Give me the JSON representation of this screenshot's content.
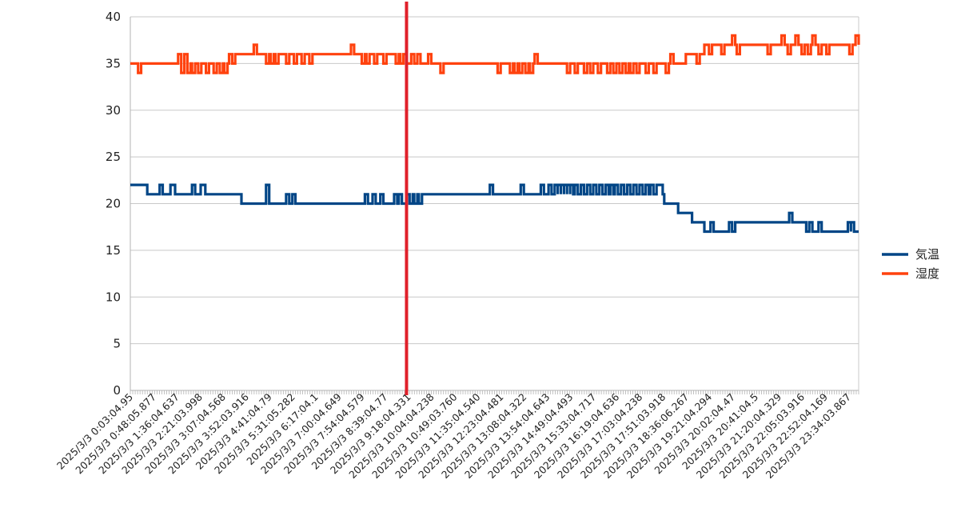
{
  "chart_data": {
    "type": "line",
    "title": "",
    "xlabel": "",
    "ylabel": "",
    "ylim": [
      0,
      40
    ],
    "yticks": [
      "0",
      "5",
      "10",
      "15",
      "20",
      "25",
      "30",
      "35",
      "40"
    ],
    "grid": "horizontal",
    "legend_position": "right",
    "x_range_hours": [
      0.0,
      23.6
    ],
    "x_tick_labels": [
      "2025/3/3 0:03:04.95",
      "2025/3/3 0:48:05.877",
      "2025/3/3 1:36:04.637",
      "2025/3/3 2:21:03.998",
      "2025/3/3 3:07:04.568",
      "2025/3/3 3:52:03.916",
      "2025/3/3 4:41:04.79",
      "2025/3/3 5:31:05.282",
      "2025/3/3 6:17:04.1",
      "2025/3/3 7:00:04.649",
      "2025/3/3 7:54:04.579",
      "2025/3/3 8:39:04.77",
      "2025/3/3 9:18:04.331",
      "2025/3/3 10:04:04.238",
      "2025/3/3 10:49:03.760",
      "2025/3/3 11:35:04.540",
      "2025/3/3 12:23:04.481",
      "2025/3/3 13:08:04.322",
      "2025/3/3 13:54:04.643",
      "2025/3/3 14:49:04.493",
      "2025/3/3 15:33:04.717",
      "2025/3/3 16:19:04.636",
      "2025/3/3 17:03:04.238",
      "2025/3/3 17:51:03.918",
      "2025/3/3 18:36:06.267",
      "2025/3/3 19:21:04.294",
      "2025/3/3 20:02:04.47",
      "2025/3/3 20:41:04.5",
      "2025/3/3 21:20:04.329",
      "2025/3/3 22:05:03.916",
      "2025/3/3 22:52:04.169",
      "2025/3/3 23:34:03.867"
    ],
    "marker_line": {
      "x_hours": 8.95,
      "color": "#e0202a"
    },
    "series": [
      {
        "name": "気温",
        "color": "#004586",
        "base_steps": [
          [
            0.0,
            22
          ],
          [
            0.55,
            21
          ],
          [
            3.6,
            20
          ],
          [
            8.95,
            21
          ],
          [
            17.3,
            20
          ],
          [
            17.75,
            19
          ],
          [
            18.2,
            18
          ],
          [
            18.6,
            17
          ],
          [
            19.6,
            18
          ],
          [
            22.1,
            17
          ]
        ],
        "spikes": [
          {
            "x": 0.95,
            "y": 22
          },
          {
            "x": 1.3,
            "y": 22
          },
          {
            "x": 1.35,
            "y": 22
          },
          {
            "x": 2.0,
            "y": 22
          },
          {
            "x": 2.28,
            "y": 22
          },
          {
            "x": 2.33,
            "y": 22
          },
          {
            "x": 4.4,
            "y": 22
          },
          {
            "x": 5.05,
            "y": 21
          },
          {
            "x": 5.25,
            "y": 21
          },
          {
            "x": 7.6,
            "y": 21
          },
          {
            "x": 7.85,
            "y": 21
          },
          {
            "x": 8.1,
            "y": 21
          },
          {
            "x": 8.55,
            "y": 21
          },
          {
            "x": 8.7,
            "y": 21
          },
          {
            "x": 9.05,
            "y": 20
          },
          {
            "x": 9.2,
            "y": 20
          },
          {
            "x": 9.35,
            "y": 20
          },
          {
            "x": 11.65,
            "y": 22
          },
          {
            "x": 12.65,
            "y": 22
          },
          {
            "x": 13.3,
            "y": 22
          },
          {
            "x": 13.55,
            "y": 22
          },
          {
            "x": 13.75,
            "y": 22
          },
          {
            "x": 13.85,
            "y": 22
          },
          {
            "x": 13.95,
            "y": 22
          },
          {
            "x": 14.05,
            "y": 22
          },
          {
            "x": 14.15,
            "y": 22
          },
          {
            "x": 14.25,
            "y": 22
          },
          {
            "x": 14.4,
            "y": 22
          },
          {
            "x": 14.6,
            "y": 22
          },
          {
            "x": 14.8,
            "y": 22
          },
          {
            "x": 15.0,
            "y": 22
          },
          {
            "x": 15.2,
            "y": 22
          },
          {
            "x": 15.4,
            "y": 22
          },
          {
            "x": 15.55,
            "y": 22
          },
          {
            "x": 15.7,
            "y": 22
          },
          {
            "x": 15.9,
            "y": 22
          },
          {
            "x": 16.1,
            "y": 22
          },
          {
            "x": 16.3,
            "y": 22
          },
          {
            "x": 16.5,
            "y": 22
          },
          {
            "x": 16.7,
            "y": 22
          },
          {
            "x": 16.85,
            "y": 22
          },
          {
            "x": 17.05,
            "y": 22
          },
          {
            "x": 17.15,
            "y": 22
          },
          {
            "x": 18.1,
            "y": 19
          },
          {
            "x": 18.8,
            "y": 18
          },
          {
            "x": 19.4,
            "y": 18
          },
          {
            "x": 20.45,
            "y": 18
          },
          {
            "x": 21.35,
            "y": 19
          },
          {
            "x": 21.9,
            "y": 17
          },
          {
            "x": 22.3,
            "y": 18
          },
          {
            "x": 23.25,
            "y": 18
          },
          {
            "x": 23.35,
            "y": 18
          }
        ]
      },
      {
        "name": "湿度",
        "color": "#ff420e",
        "base_steps": [
          [
            0.0,
            35
          ],
          [
            3.4,
            36
          ],
          [
            8.95,
            35
          ],
          [
            18.0,
            36
          ],
          [
            18.6,
            37
          ]
        ],
        "spikes": [
          {
            "x": 0.25,
            "y": 34
          },
          {
            "x": 1.55,
            "y": 36
          },
          {
            "x": 1.65,
            "y": 34
          },
          {
            "x": 1.75,
            "y": 36
          },
          {
            "x": 1.85,
            "y": 34
          },
          {
            "x": 2.0,
            "y": 34
          },
          {
            "x": 2.2,
            "y": 34
          },
          {
            "x": 2.45,
            "y": 34
          },
          {
            "x": 2.7,
            "y": 34
          },
          {
            "x": 2.9,
            "y": 34
          },
          {
            "x": 3.05,
            "y": 34
          },
          {
            "x": 3.2,
            "y": 36
          },
          {
            "x": 4.0,
            "y": 37
          },
          {
            "x": 4.4,
            "y": 35
          },
          {
            "x": 4.55,
            "y": 35
          },
          {
            "x": 4.7,
            "y": 35
          },
          {
            "x": 5.05,
            "y": 35
          },
          {
            "x": 5.3,
            "y": 35
          },
          {
            "x": 5.55,
            "y": 35
          },
          {
            "x": 5.8,
            "y": 35
          },
          {
            "x": 7.15,
            "y": 37
          },
          {
            "x": 7.5,
            "y": 35
          },
          {
            "x": 7.65,
            "y": 35
          },
          {
            "x": 7.9,
            "y": 35
          },
          {
            "x": 8.2,
            "y": 35
          },
          {
            "x": 8.6,
            "y": 35
          },
          {
            "x": 8.75,
            "y": 35
          },
          {
            "x": 9.1,
            "y": 36
          },
          {
            "x": 9.3,
            "y": 36
          },
          {
            "x": 9.65,
            "y": 36
          },
          {
            "x": 10.05,
            "y": 34
          },
          {
            "x": 11.9,
            "y": 34
          },
          {
            "x": 12.3,
            "y": 34
          },
          {
            "x": 12.45,
            "y": 34
          },
          {
            "x": 12.6,
            "y": 34
          },
          {
            "x": 12.8,
            "y": 34
          },
          {
            "x": 12.95,
            "y": 34
          },
          {
            "x": 13.1,
            "y": 36
          },
          {
            "x": 14.15,
            "y": 34
          },
          {
            "x": 14.4,
            "y": 34
          },
          {
            "x": 14.7,
            "y": 34
          },
          {
            "x": 14.9,
            "y": 34
          },
          {
            "x": 15.15,
            "y": 34
          },
          {
            "x": 15.45,
            "y": 34
          },
          {
            "x": 15.65,
            "y": 34
          },
          {
            "x": 15.85,
            "y": 34
          },
          {
            "x": 16.05,
            "y": 34
          },
          {
            "x": 16.2,
            "y": 34
          },
          {
            "x": 16.4,
            "y": 34
          },
          {
            "x": 16.7,
            "y": 34
          },
          {
            "x": 16.95,
            "y": 34
          },
          {
            "x": 17.35,
            "y": 34
          },
          {
            "x": 17.5,
            "y": 36
          },
          {
            "x": 18.35,
            "y": 35
          },
          {
            "x": 18.75,
            "y": 36
          },
          {
            "x": 19.15,
            "y": 36
          },
          {
            "x": 19.5,
            "y": 38
          },
          {
            "x": 19.65,
            "y": 36
          },
          {
            "x": 20.65,
            "y": 36
          },
          {
            "x": 21.1,
            "y": 38
          },
          {
            "x": 21.3,
            "y": 36
          },
          {
            "x": 21.55,
            "y": 38
          },
          {
            "x": 21.75,
            "y": 36
          },
          {
            "x": 21.95,
            "y": 36
          },
          {
            "x": 22.1,
            "y": 38
          },
          {
            "x": 22.3,
            "y": 36
          },
          {
            "x": 22.55,
            "y": 36
          },
          {
            "x": 23.3,
            "y": 36
          },
          {
            "x": 23.5,
            "y": 38
          }
        ]
      }
    ]
  }
}
